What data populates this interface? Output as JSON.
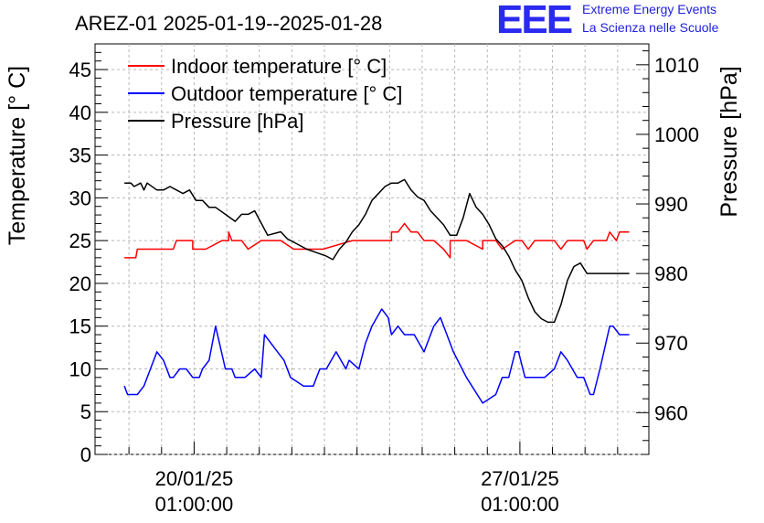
{
  "title": "AREZ-01 2025-01-19--2025-01-28",
  "logo": {
    "text": "EEE",
    "line1": "Extreme Energy Events",
    "line2": "La Scienza nelle Scuole",
    "color": "#2a2af0"
  },
  "chart_data": {
    "type": "line",
    "title": "AREZ-01 2025-01-19--2025-01-28",
    "xlabel": "",
    "ylabel_left": "Temperature [° C]",
    "ylabel_right": "Pressure [hPa]",
    "x_unit": "days since 2025-01-19 00:00",
    "xlim": [
      -2.5,
      14.5
    ],
    "ylim_left": [
      0,
      48
    ],
    "ylim_right": [
      954,
      1013
    ],
    "left_ticks": [
      0,
      5,
      10,
      15,
      20,
      25,
      30,
      35,
      40,
      45
    ],
    "right_ticks": [
      960,
      970,
      980,
      990,
      1000,
      1010
    ],
    "x_ticks": [
      {
        "x": 0.5417,
        "line1": "20/01/25",
        "line2": "01:00:00"
      },
      {
        "x": 10.5417,
        "line1": "27/01/25",
        "line2": "01:00:00"
      }
    ],
    "grid": true,
    "legend_placement": "top-left",
    "legend": [
      {
        "label": "Indoor temperature [° C]",
        "color": "#ff0000"
      },
      {
        "label": "Outdoor temperature [° C]",
        "color": "#0000ff"
      },
      {
        "label": "Pressure [hPa]",
        "color": "#000000"
      }
    ],
    "series": [
      {
        "name": "Indoor temperature [° C]",
        "color": "#ff0000",
        "axis": "left",
        "x": [
          -1.6,
          -1.25,
          -1.2,
          -0.9,
          -0.1,
          0.0,
          0.5,
          0.5,
          0.9,
          1.4,
          1.6,
          1.6,
          1.7,
          2.0,
          2.2,
          2.6,
          2.8,
          3.2,
          3.4,
          3.6,
          3.9,
          4.2,
          4.5,
          5.4,
          5.5,
          6.0,
          6.6,
          6.6,
          6.7,
          6.8,
          7.0,
          7.2,
          7.4,
          7.6,
          7.9,
          8.2,
          8.4,
          8.4,
          8.5,
          8.6,
          8.9,
          9.4,
          9.4,
          9.5,
          9.8,
          10.0,
          10.4,
          10.6,
          10.8,
          11.0,
          11.4,
          11.6,
          11.8,
          12.0,
          12.3,
          12.5,
          12.6,
          12.8,
          13.0,
          13.2,
          13.3,
          13.5,
          13.6,
          13.7,
          13.9
        ],
        "y": [
          23,
          23,
          24,
          24,
          24,
          25,
          25,
          24,
          24,
          25,
          25,
          26,
          25,
          25,
          24,
          25,
          25,
          25,
          24.5,
          24,
          24,
          24,
          24,
          25,
          25,
          25,
          25,
          26,
          26,
          26,
          27,
          26,
          26,
          25,
          25,
          24,
          23,
          25,
          25,
          25,
          25,
          24,
          25,
          25,
          25,
          24,
          25,
          25,
          24,
          25,
          25,
          25,
          24,
          25,
          25,
          25,
          24,
          25,
          25,
          25,
          26,
          25,
          26,
          26,
          26
        ]
      },
      {
        "name": "Outdoor temperature [° C]",
        "color": "#0000ff",
        "axis": "left",
        "x": [
          -1.6,
          -1.5,
          -1.2,
          -1.0,
          -0.8,
          -0.6,
          -0.4,
          -0.2,
          -0.1,
          0.1,
          0.3,
          0.5,
          0.7,
          0.8,
          1.0,
          1.2,
          1.5,
          1.7,
          1.8,
          2.1,
          2.4,
          2.6,
          2.7,
          3.1,
          3.3,
          3.5,
          3.9,
          4.2,
          4.4,
          4.6,
          4.9,
          5.2,
          5.3,
          5.6,
          5.8,
          6.0,
          6.3,
          6.5,
          6.6,
          6.8,
          7.0,
          7.3,
          7.6,
          7.9,
          8.1,
          8.3,
          8.5,
          8.9,
          9.4,
          9.8,
          10.0,
          10.2,
          10.4,
          10.5,
          10.7,
          11.0,
          11.3,
          11.6,
          11.8,
          12.0,
          12.3,
          12.5,
          12.7,
          12.8,
          13.0,
          13.3,
          13.4,
          13.6,
          13.9
        ],
        "y": [
          8,
          7,
          7,
          8,
          10,
          12,
          11,
          9,
          9,
          10,
          10,
          9,
          9,
          10,
          11,
          15,
          10,
          10,
          9,
          9,
          10,
          9,
          14,
          12,
          11,
          9,
          8,
          8,
          10,
          10,
          12,
          10,
          11,
          10,
          13,
          15,
          17,
          16,
          14,
          15,
          14,
          14,
          12,
          15,
          16,
          14,
          12,
          9,
          6,
          7,
          9,
          9,
          12,
          12,
          9,
          9,
          9,
          10,
          12,
          11,
          9,
          9,
          7,
          7,
          10,
          15,
          15,
          14,
          14
        ]
      },
      {
        "name": "Pressure [hPa]",
        "color": "#000000",
        "axis": "right",
        "x": [
          -1.6,
          -1.4,
          -1.3,
          -1.1,
          -1.0,
          -0.9,
          -0.6,
          -0.4,
          -0.2,
          0.0,
          0.2,
          0.4,
          0.6,
          0.8,
          1.0,
          1.2,
          1.5,
          1.8,
          2.0,
          2.2,
          2.4,
          2.8,
          3.2,
          3.4,
          3.6,
          4.0,
          4.3,
          4.6,
          4.8,
          5.0,
          5.2,
          5.4,
          5.6,
          5.8,
          6.0,
          6.4,
          6.6,
          6.8,
          7.0,
          7.2,
          7.4,
          7.6,
          7.8,
          8.0,
          8.2,
          8.4,
          8.6,
          8.8,
          9.0,
          9.2,
          9.4,
          9.6,
          9.8,
          10.0,
          10.2,
          10.4,
          10.6,
          10.8,
          11.0,
          11.2,
          11.4,
          11.6,
          11.8,
          12.0,
          12.2,
          12.4,
          12.6,
          12.8,
          13.0,
          13.2,
          13.5,
          13.7,
          13.9
        ],
        "y": [
          993,
          993,
          992.5,
          993,
          992,
          993,
          992,
          992,
          992.5,
          992,
          991.5,
          992,
          990.5,
          990.5,
          989.5,
          989.5,
          988.5,
          987.5,
          988.5,
          988.5,
          989,
          985.5,
          986,
          985,
          984.5,
          983.5,
          983,
          982.5,
          982,
          983.5,
          984.5,
          986,
          987,
          988.5,
          990.5,
          992.5,
          993,
          993,
          993.5,
          992,
          991,
          990.5,
          989,
          988,
          987,
          985.5,
          985.5,
          988,
          991.5,
          989.5,
          988.5,
          987,
          985,
          984,
          982.5,
          980.5,
          979,
          976.5,
          974.5,
          973.5,
          973,
          973,
          975.5,
          979,
          981,
          981.5,
          980,
          980,
          980,
          980,
          980,
          980,
          980
        ]
      }
    ]
  }
}
